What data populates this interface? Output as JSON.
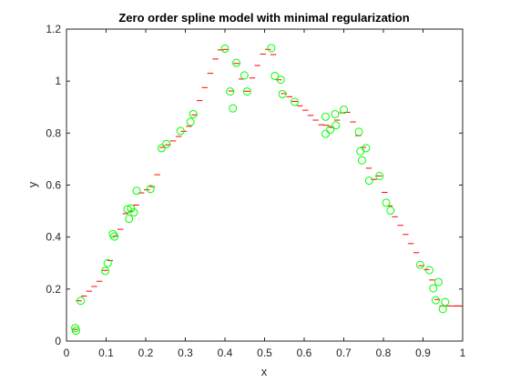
{
  "chart_data": {
    "type": "scatter",
    "title": "Zero order spline model with minimal regularization",
    "xlabel": "x",
    "ylabel": "y",
    "xlim": [
      0,
      1
    ],
    "ylim": [
      0,
      1.2
    ],
    "x_ticks": [
      "0",
      "0.1",
      "0.2",
      "0.3",
      "0.4",
      "0.5",
      "0.6",
      "0.7",
      "0.8",
      "0.9",
      "1"
    ],
    "y_ticks": [
      "0",
      "0.2",
      "0.4",
      "0.6",
      "0.8",
      "1",
      "1.2"
    ],
    "grid": false,
    "colors": {
      "data_points": "#00ff00",
      "model_steps": "#ff0000",
      "axes": "#262626"
    },
    "data_points": [
      [
        0.022,
        0.05
      ],
      [
        0.024,
        0.04
      ],
      [
        0.036,
        0.155
      ],
      [
        0.098,
        0.27
      ],
      [
        0.104,
        0.3
      ],
      [
        0.117,
        0.412
      ],
      [
        0.121,
        0.402
      ],
      [
        0.154,
        0.507
      ],
      [
        0.158,
        0.47
      ],
      [
        0.163,
        0.51
      ],
      [
        0.17,
        0.495
      ],
      [
        0.177,
        0.578
      ],
      [
        0.212,
        0.585
      ],
      [
        0.24,
        0.742
      ],
      [
        0.252,
        0.758
      ],
      [
        0.288,
        0.808
      ],
      [
        0.313,
        0.843
      ],
      [
        0.32,
        0.873
      ],
      [
        0.4,
        1.125
      ],
      [
        0.413,
        0.96
      ],
      [
        0.42,
        0.895
      ],
      [
        0.429,
        1.07
      ],
      [
        0.449,
        1.022
      ],
      [
        0.456,
        0.96
      ],
      [
        0.517,
        1.127
      ],
      [
        0.526,
        1.02
      ],
      [
        0.541,
        1.005
      ],
      [
        0.545,
        0.95
      ],
      [
        0.576,
        0.92
      ],
      [
        0.654,
        0.797
      ],
      [
        0.654,
        0.863
      ],
      [
        0.666,
        0.813
      ],
      [
        0.678,
        0.873
      ],
      [
        0.68,
        0.83
      ],
      [
        0.7,
        0.89
      ],
      [
        0.738,
        0.805
      ],
      [
        0.742,
        0.73
      ],
      [
        0.746,
        0.695
      ],
      [
        0.756,
        0.742
      ],
      [
        0.764,
        0.617
      ],
      [
        0.79,
        0.635
      ],
      [
        0.807,
        0.532
      ],
      [
        0.818,
        0.502
      ],
      [
        0.893,
        0.293
      ],
      [
        0.916,
        0.273
      ],
      [
        0.926,
        0.203
      ],
      [
        0.932,
        0.157
      ],
      [
        0.939,
        0.227
      ],
      [
        0.95,
        0.123
      ],
      [
        0.956,
        0.15
      ]
    ],
    "model_steps": [
      [
        0.02,
        0.045
      ],
      [
        0.031,
        0.155
      ],
      [
        0.044,
        0.173
      ],
      [
        0.057,
        0.192
      ],
      [
        0.07,
        0.21
      ],
      [
        0.083,
        0.23
      ],
      [
        0.097,
        0.272
      ],
      [
        0.11,
        0.31
      ],
      [
        0.124,
        0.404
      ],
      [
        0.136,
        0.43
      ],
      [
        0.149,
        0.49
      ],
      [
        0.162,
        0.5
      ],
      [
        0.176,
        0.523
      ],
      [
        0.189,
        0.57
      ],
      [
        0.203,
        0.582
      ],
      [
        0.216,
        0.594
      ],
      [
        0.229,
        0.64
      ],
      [
        0.242,
        0.745
      ],
      [
        0.256,
        0.755
      ],
      [
        0.269,
        0.77
      ],
      [
        0.283,
        0.787
      ],
      [
        0.296,
        0.807
      ],
      [
        0.309,
        0.826
      ],
      [
        0.323,
        0.87
      ],
      [
        0.336,
        0.925
      ],
      [
        0.349,
        0.975
      ],
      [
        0.363,
        1.03
      ],
      [
        0.376,
        1.085
      ],
      [
        0.389,
        1.12
      ],
      [
        0.402,
        1.122
      ],
      [
        0.416,
        0.962
      ],
      [
        0.429,
        1.068
      ],
      [
        0.442,
        1.008
      ],
      [
        0.456,
        0.961
      ],
      [
        0.469,
        1.012
      ],
      [
        0.482,
        1.06
      ],
      [
        0.496,
        1.104
      ],
      [
        0.509,
        1.122
      ],
      [
        0.522,
        1.102
      ],
      [
        0.536,
        1.005
      ],
      [
        0.549,
        0.952
      ],
      [
        0.563,
        0.94
      ],
      [
        0.576,
        0.922
      ],
      [
        0.589,
        0.905
      ],
      [
        0.603,
        0.888
      ],
      [
        0.616,
        0.868
      ],
      [
        0.629,
        0.85
      ],
      [
        0.643,
        0.832
      ],
      [
        0.656,
        0.83
      ],
      [
        0.669,
        0.822
      ],
      [
        0.683,
        0.85
      ],
      [
        0.696,
        0.878
      ],
      [
        0.709,
        0.88
      ],
      [
        0.723,
        0.843
      ],
      [
        0.736,
        0.79
      ],
      [
        0.749,
        0.745
      ],
      [
        0.763,
        0.665
      ],
      [
        0.776,
        0.622
      ],
      [
        0.789,
        0.635
      ],
      [
        0.803,
        0.572
      ],
      [
        0.816,
        0.52
      ],
      [
        0.829,
        0.478
      ],
      [
        0.843,
        0.445
      ],
      [
        0.856,
        0.41
      ],
      [
        0.869,
        0.375
      ],
      [
        0.883,
        0.34
      ],
      [
        0.896,
        0.29
      ],
      [
        0.909,
        0.275
      ],
      [
        0.923,
        0.235
      ],
      [
        0.936,
        0.16
      ],
      [
        0.949,
        0.135
      ],
      [
        0.962,
        0.135
      ],
      [
        0.975,
        0.135
      ],
      [
        0.988,
        0.135
      ]
    ]
  }
}
